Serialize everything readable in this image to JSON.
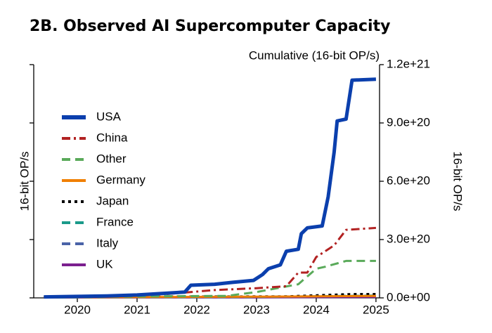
{
  "chart_data": {
    "type": "line",
    "title": "2B. Observed AI Supercomputer Capacity",
    "subtitle": "Cumulative (16-bit OP/s)",
    "y_label": "16-bit OP/s",
    "y2_label": "16-bit OP/s",
    "xlim": [
      2019.27,
      2025.06
    ],
    "xticks": [
      2020,
      2021,
      2022,
      2023,
      2024,
      2025
    ],
    "ylim": [
      0,
      1.2e+21
    ],
    "yticks": [
      {
        "value": 0,
        "label": "0.0e+00"
      },
      {
        "value": 3e+20,
        "label": "3.0e+20"
      },
      {
        "value": 6e+20,
        "label": "6.0e+20"
      },
      {
        "value": 9e+20,
        "label": "9.0e+20"
      },
      {
        "value": 1.2e+21,
        "label": "1.2e+21"
      }
    ],
    "series": [
      {
        "name": "USA",
        "color": "#0b3fad",
        "linestyle": "solid",
        "width": 5,
        "x": [
          2019.44,
          2020.5,
          2021.0,
          2021.8,
          2021.9,
          2022.3,
          2022.6,
          2022.95,
          2023.1,
          2023.2,
          2023.4,
          2023.5,
          2023.7,
          2023.75,
          2023.85,
          2024.1,
          2024.2,
          2024.3,
          2024.35,
          2024.5,
          2024.6,
          2025.0
        ],
        "values": [
          5e+18,
          1e+19,
          1.5e+19,
          3e+19,
          6.5e+19,
          7e+19,
          8e+19,
          9e+19,
          1.2e+20,
          1.5e+20,
          1.7e+20,
          2.4e+20,
          2.5e+20,
          3.3e+20,
          3.6e+20,
          3.7e+20,
          5.2e+20,
          7.5e+20,
          9.1e+20,
          9.2e+20,
          1.12e+21,
          1.125e+21
        ]
      },
      {
        "name": "China",
        "color": "#b22222",
        "linestyle": "dashdot",
        "width": 3,
        "x": [
          2019.44,
          2021.5,
          2022.3,
          2023.0,
          2023.5,
          2023.7,
          2023.85,
          2024.0,
          2024.3,
          2024.5,
          2025.0
        ],
        "values": [
          2e+18,
          2e+19,
          4e+19,
          5e+19,
          6e+19,
          1.3e+20,
          1.3e+20,
          2.1e+20,
          2.7e+20,
          3.5e+20,
          3.6e+20
        ]
      },
      {
        "name": "Other",
        "color": "#5aaa5a",
        "linestyle": "dashed",
        "width": 3,
        "x": [
          2019.44,
          2022.5,
          2023.0,
          2023.7,
          2024.0,
          2024.15,
          2024.5,
          2025.0
        ],
        "values": [
          5e+18,
          1e+19,
          3e+19,
          7e+19,
          1.5e+20,
          1.6e+20,
          1.9e+20,
          1.9e+20
        ]
      },
      {
        "name": "Germany",
        "color": "#f07f00",
        "linestyle": "solid",
        "width": 3,
        "x": [
          2019.44,
          2023.0,
          2025.0
        ],
        "values": [
          3e+18,
          6e+18,
          1e+19
        ]
      },
      {
        "name": "Japan",
        "color": "#000000",
        "linestyle": "dotted",
        "width": 3,
        "x": [
          2019.44,
          2021.0,
          2023.5,
          2024.6,
          2025.0
        ],
        "values": [
          3e+18,
          6e+18,
          8e+18,
          2e+19,
          2e+19
        ]
      },
      {
        "name": "France",
        "color": "#1a9a8a",
        "linestyle": "dashed",
        "width": 3,
        "x": [
          2019.44,
          2023.0,
          2025.0
        ],
        "values": [
          2e+18,
          5e+18,
          1.2e+19
        ]
      },
      {
        "name": "Italy",
        "color": "#4a63a8",
        "linestyle": "dashed",
        "width": 3,
        "x": [
          2019.44,
          2023.0,
          2025.0
        ],
        "values": [
          2e+18,
          5e+18,
          1e+19
        ]
      },
      {
        "name": "UK",
        "color": "#7b1f8f",
        "linestyle": "solid",
        "width": 3,
        "x": [
          2019.44,
          2023.0,
          2025.0
        ],
        "values": [
          2e+18,
          3e+18,
          5e+18
        ]
      }
    ]
  }
}
